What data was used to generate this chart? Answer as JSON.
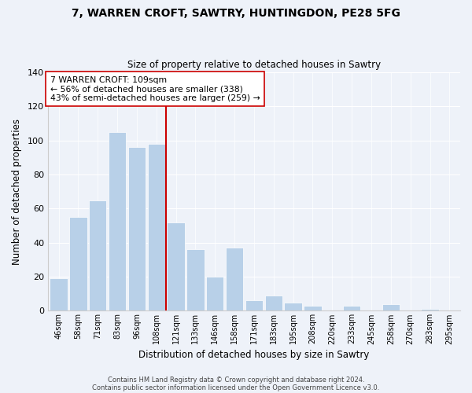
{
  "title": "7, WARREN CROFT, SAWTRY, HUNTINGDON, PE28 5FG",
  "subtitle": "Size of property relative to detached houses in Sawtry",
  "xlabel": "Distribution of detached houses by size in Sawtry",
  "ylabel": "Number of detached properties",
  "bar_color": "#b8d0e8",
  "bar_edge_color": "white",
  "categories": [
    "46sqm",
    "58sqm",
    "71sqm",
    "83sqm",
    "96sqm",
    "108sqm",
    "121sqm",
    "133sqm",
    "146sqm",
    "158sqm",
    "171sqm",
    "183sqm",
    "195sqm",
    "208sqm",
    "220sqm",
    "233sqm",
    "245sqm",
    "258sqm",
    "270sqm",
    "283sqm",
    "295sqm"
  ],
  "values": [
    19,
    55,
    65,
    105,
    96,
    98,
    52,
    36,
    20,
    37,
    6,
    9,
    5,
    3,
    0,
    3,
    0,
    4,
    0,
    1,
    0
  ],
  "vline_x": 5.5,
  "vline_color": "#cc0000",
  "ylim": [
    0,
    140
  ],
  "yticks": [
    0,
    20,
    40,
    60,
    80,
    100,
    120,
    140
  ],
  "annotation_title": "7 WARREN CROFT: 109sqm",
  "annotation_line1": "← 56% of detached houses are smaller (338)",
  "annotation_line2": "43% of semi-detached houses are larger (259) →",
  "footer1": "Contains HM Land Registry data © Crown copyright and database right 2024.",
  "footer2": "Contains public sector information licensed under the Open Government Licence v3.0.",
  "background_color": "#eef2f9"
}
